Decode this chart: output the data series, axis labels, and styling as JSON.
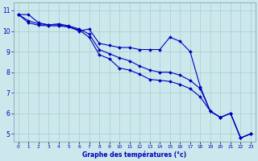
{
  "xlabel": "Graphe des températures (°c)",
  "x": [
    0,
    1,
    2,
    3,
    4,
    5,
    6,
    7,
    8,
    9,
    10,
    11,
    12,
    13,
    14,
    15,
    16,
    17,
    18,
    19,
    20,
    21,
    22,
    23
  ],
  "line1": [
    10.8,
    10.8,
    10.4,
    10.3,
    10.3,
    10.2,
    10.0,
    10.1,
    9.4,
    9.3,
    9.2,
    9.2,
    9.1,
    9.1,
    9.1,
    9.7,
    9.5,
    9.0,
    7.3,
    6.1,
    5.8,
    6.0,
    4.8,
    5.0
  ],
  "line2": [
    10.8,
    10.5,
    10.35,
    10.3,
    10.35,
    10.25,
    10.1,
    9.85,
    9.1,
    8.9,
    8.7,
    8.55,
    8.3,
    8.1,
    8.0,
    8.0,
    7.85,
    7.6,
    7.2,
    6.1,
    5.8,
    6.0,
    4.8,
    5.0
  ],
  "line3": [
    10.8,
    10.4,
    10.28,
    10.25,
    10.25,
    10.2,
    10.05,
    9.7,
    8.85,
    8.65,
    8.2,
    8.1,
    7.9,
    7.65,
    7.6,
    7.55,
    7.4,
    7.2,
    6.8,
    6.1,
    5.8,
    6.0,
    4.8,
    5.0
  ],
  "line_color": "#0000bb",
  "bg_color": "#cce8ec",
  "grid_color": "#aacccc",
  "ylim": [
    4.6,
    11.4
  ],
  "yticks": [
    5,
    6,
    7,
    8,
    9,
    10,
    11
  ],
  "xlim": [
    -0.5,
    23.5
  ],
  "marker": "D",
  "markersize": 2.0,
  "linewidth": 0.8
}
